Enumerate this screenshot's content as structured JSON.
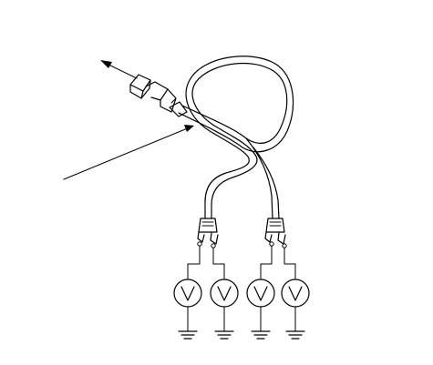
{
  "diagram": {
    "connector_count": 1,
    "voltmeter_count": 4,
    "ground_count": 4,
    "voltmeter_symbol": "V",
    "arrow_icon": "arrow-icon",
    "ground_icon": "ground-icon",
    "voltmeter_icon": "voltmeter-icon",
    "line_color": "#000000",
    "background_color": "#ffffff"
  }
}
